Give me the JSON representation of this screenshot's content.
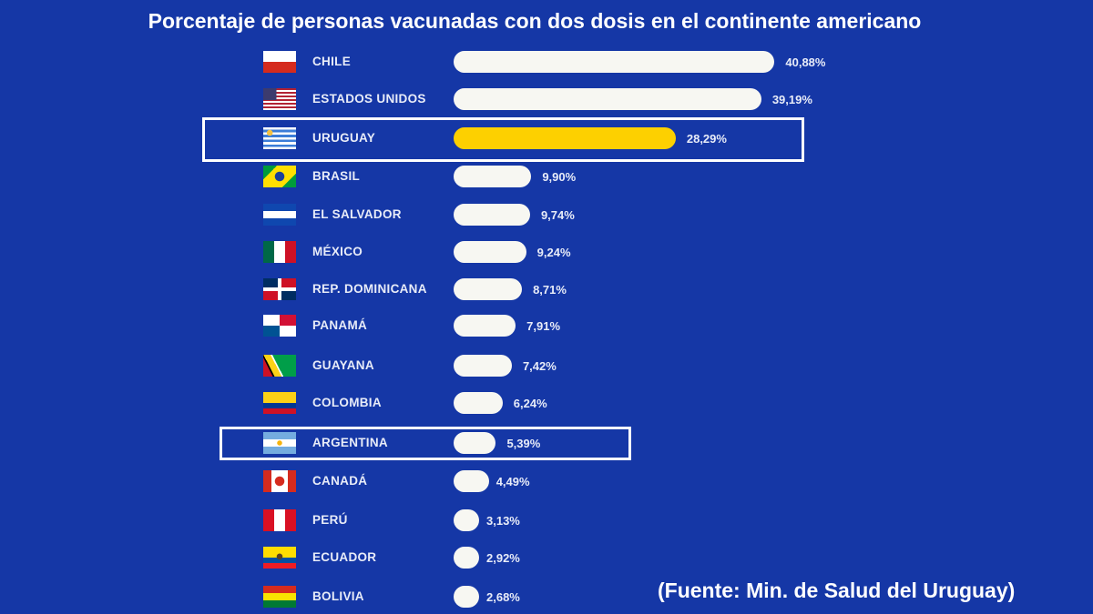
{
  "chart_data": {
    "type": "bar",
    "orientation": "horizontal",
    "title": "Porcentaje de personas vacunadas con dos dosis en el continente americano",
    "source": "(Fuente: Min. de Salud del Uruguay)",
    "categories": [
      "CHILE",
      "ESTADOS UNIDOS",
      "URUGUAY",
      "BRASIL",
      "EL SALVADOR",
      "MÉXICO",
      "REP. DOMINICANA",
      "PANAMÁ",
      "GUAYANA",
      "COLOMBIA",
      "ARGENTINA",
      "CANADÁ",
      "PERÚ",
      "ECUADOR",
      "BOLIVIA"
    ],
    "values": [
      40.88,
      39.19,
      28.29,
      9.9,
      9.74,
      9.24,
      8.71,
      7.91,
      7.42,
      6.24,
      5.39,
      4.49,
      3.13,
      2.92,
      2.68
    ],
    "value_labels": [
      "40,88%",
      "39,19%",
      "28,29%",
      "9,90%",
      "9,74%",
      "9,24%",
      "8,71%",
      "7,91%",
      "7,42%",
      "6,24%",
      "5,39%",
      "4,49%",
      "3,13%",
      "2,92%",
      "2,68%"
    ],
    "highlighted": [
      "URUGUAY",
      "ARGENTINA"
    ],
    "colors": {
      "background": "#1537a6",
      "bar": "#f7f7f2",
      "highlight_bar": "#fdd000",
      "highlight_box": "#ffffff"
    },
    "flags": [
      "chile",
      "usa",
      "uruguay",
      "brazil",
      "el-salvador",
      "mexico",
      "dominican-republic",
      "panama",
      "guyana",
      "colombia",
      "argentina",
      "canada",
      "peru",
      "ecuador",
      "bolivia"
    ]
  }
}
